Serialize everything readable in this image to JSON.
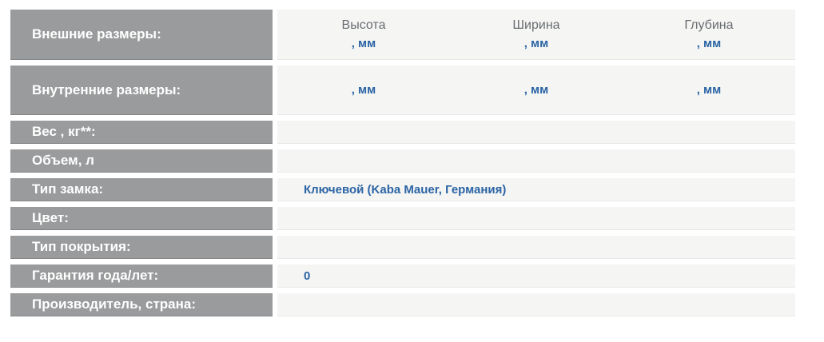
{
  "colors": {
    "label_bg": "#999b9c",
    "label_text": "#ffffff",
    "value_bg": "#f5f5f3",
    "header_text": "#696d72",
    "accent_blue": "#2b64a5",
    "page_bg": "#ffffff"
  },
  "table": {
    "dim_headers": [
      "Высота",
      "Ширина",
      "Глубина"
    ],
    "unit_suffix": ", мм",
    "rows": [
      {
        "label": "Внешние размеры:"
      },
      {
        "label": "Внутренние размеры:"
      },
      {
        "label": "Вес , кг**:",
        "value": ""
      },
      {
        "label": "Объем, л",
        "value": ""
      },
      {
        "label": "Тип замка:",
        "value": "Ключевой (Kaba Mauer, Германия)"
      },
      {
        "label": "Цвет:",
        "value": ""
      },
      {
        "label": "Тип покрытия:",
        "value": ""
      },
      {
        "label": "Гарантия года/лет:",
        "value": "0"
      },
      {
        "label": "Производитель, страна:",
        "value": ""
      }
    ]
  }
}
